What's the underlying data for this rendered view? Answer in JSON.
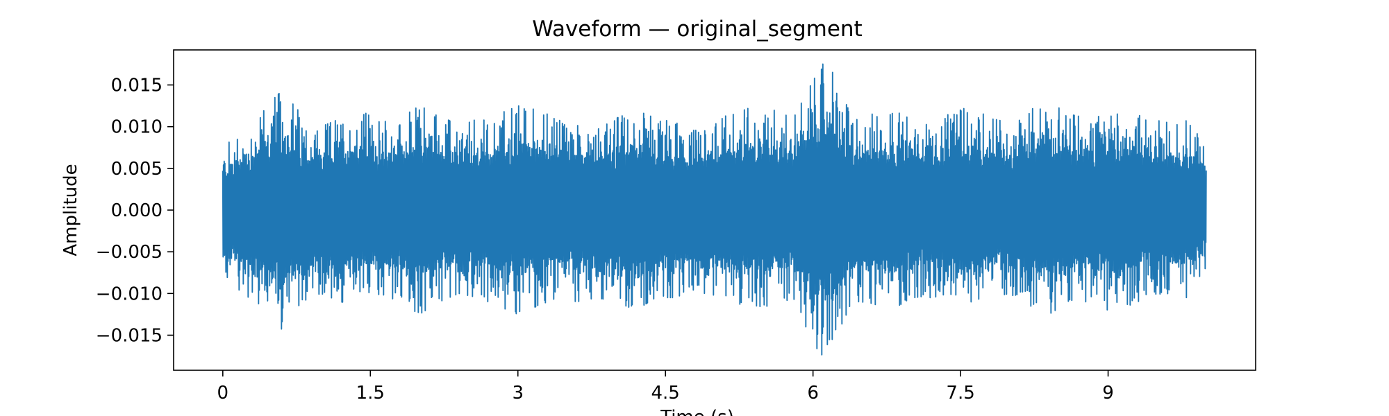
{
  "chart_data": {
    "type": "line",
    "title": "Waveform — original_segment",
    "xlabel": "Time (s)",
    "ylabel": "Amplitude",
    "xlim": [
      -0.5,
      10.5
    ],
    "ylim": [
      -0.0192,
      0.0192
    ],
    "x_ticks": [
      {
        "value": 0,
        "label": "0"
      },
      {
        "value": 1.5,
        "label": "1.5"
      },
      {
        "value": 3,
        "label": "3"
      },
      {
        "value": 4.5,
        "label": "4.5"
      },
      {
        "value": 6,
        "label": "6"
      },
      {
        "value": 7.5,
        "label": "7.5"
      },
      {
        "value": 9,
        "label": "9"
      }
    ],
    "y_ticks": [
      {
        "value": 0.015,
        "label": "0.015"
      },
      {
        "value": 0.01,
        "label": "0.010"
      },
      {
        "value": 0.005,
        "label": "0.005"
      },
      {
        "value": 0.0,
        "label": "0.000"
      },
      {
        "value": -0.005,
        "label": "−0.005"
      },
      {
        "value": -0.01,
        "label": "−0.010"
      },
      {
        "value": -0.015,
        "label": "−0.015"
      }
    ],
    "grid": false,
    "series": [
      {
        "color": "#1f77b4",
        "x": [
          0.0,
          0.2,
          0.4,
          0.6,
          0.8,
          1.0,
          1.2,
          1.4,
          1.6,
          1.8,
          2.0,
          2.2,
          2.4,
          2.6,
          2.8,
          3.0,
          3.2,
          3.4,
          3.6,
          3.8,
          4.0,
          4.2,
          4.4,
          4.6,
          4.8,
          5.0,
          5.2,
          5.4,
          5.6,
          5.8,
          6.0,
          6.1,
          6.2,
          6.4,
          6.6,
          6.8,
          7.0,
          7.2,
          7.4,
          7.6,
          7.8,
          8.0,
          8.2,
          8.4,
          8.6,
          8.8,
          9.0,
          9.2,
          9.4,
          9.6,
          9.8,
          10.0
        ],
        "upper": [
          0.0075,
          0.0095,
          0.012,
          0.0143,
          0.0115,
          0.01,
          0.011,
          0.012,
          0.0105,
          0.011,
          0.0125,
          0.0115,
          0.01,
          0.011,
          0.0115,
          0.0125,
          0.012,
          0.011,
          0.011,
          0.0105,
          0.011,
          0.012,
          0.011,
          0.0105,
          0.0095,
          0.011,
          0.0115,
          0.0125,
          0.012,
          0.011,
          0.0155,
          0.0175,
          0.0165,
          0.011,
          0.0115,
          0.012,
          0.011,
          0.011,
          0.0115,
          0.0125,
          0.011,
          0.0105,
          0.012,
          0.013,
          0.0115,
          0.011,
          0.0125,
          0.012,
          0.011,
          0.0105,
          0.011,
          0.0075
        ],
        "lower": [
          -0.0075,
          -0.01,
          -0.0115,
          -0.0143,
          -0.011,
          -0.01,
          -0.011,
          -0.0115,
          -0.01,
          -0.011,
          -0.0125,
          -0.011,
          -0.01,
          -0.0105,
          -0.0115,
          -0.0125,
          -0.0115,
          -0.0105,
          -0.011,
          -0.0105,
          -0.011,
          -0.012,
          -0.0105,
          -0.0105,
          -0.0095,
          -0.0105,
          -0.011,
          -0.012,
          -0.0115,
          -0.0105,
          -0.016,
          -0.0175,
          -0.016,
          -0.011,
          -0.0115,
          -0.012,
          -0.0105,
          -0.0105,
          -0.011,
          -0.0125,
          -0.0105,
          -0.01,
          -0.0115,
          -0.0125,
          -0.011,
          -0.011,
          -0.012,
          -0.0115,
          -0.0105,
          -0.01,
          -0.0105,
          -0.007
        ],
        "duration": 10.0
      }
    ]
  }
}
